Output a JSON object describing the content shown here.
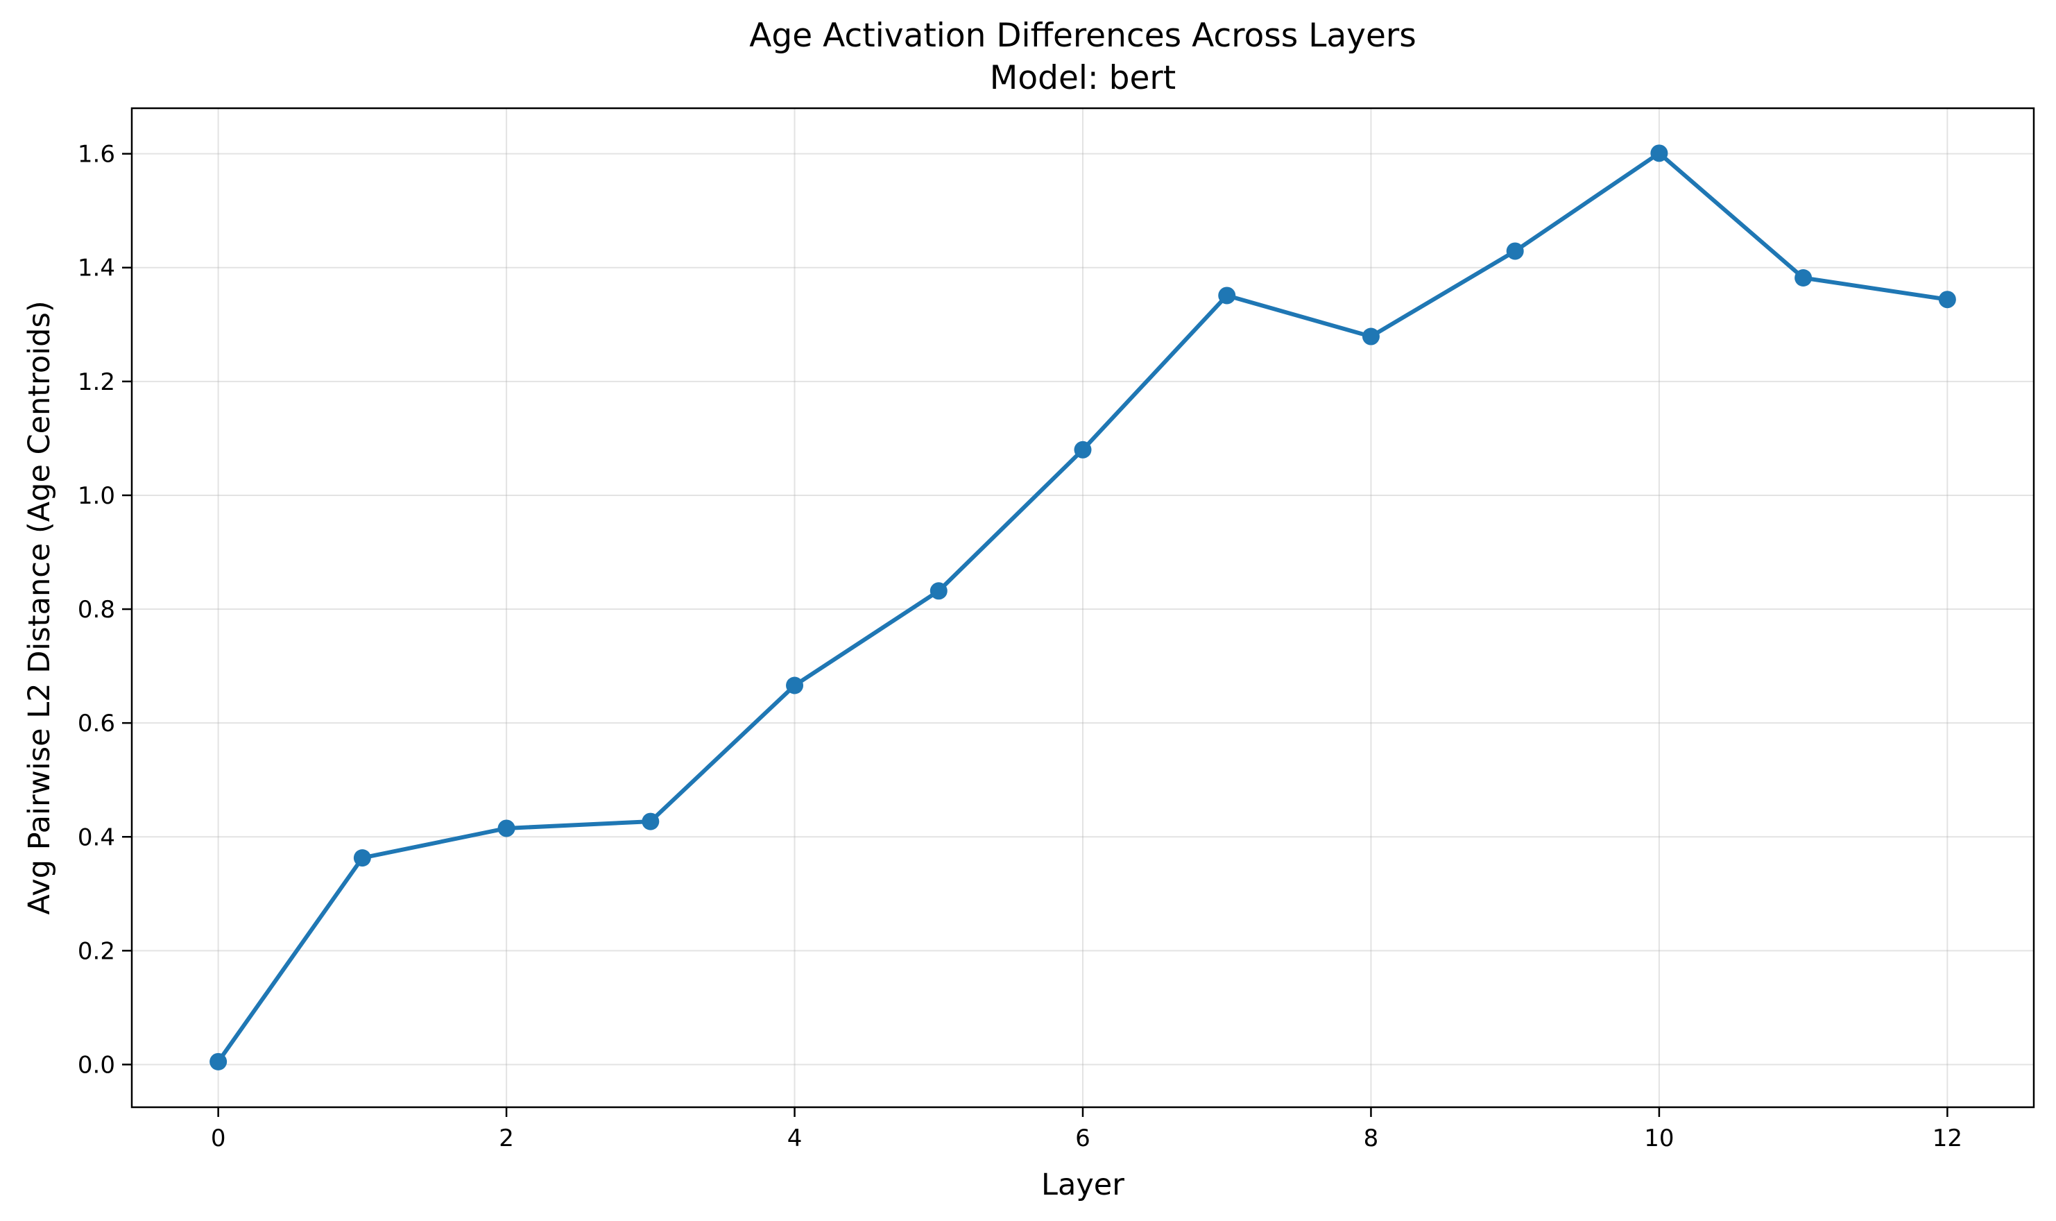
{
  "chart_data": {
    "type": "line",
    "title": "Age Activation Differences Across Layers",
    "subtitle": "Model: bert",
    "xlabel": "Layer",
    "ylabel": "Avg Pairwise L2 Distance (Age Centroids)",
    "xlim": [
      -0.6,
      12.6
    ],
    "ylim": [
      -0.075,
      1.68
    ],
    "xticks": [
      0,
      2,
      4,
      6,
      8,
      10,
      12
    ],
    "xtick_labels": [
      "0",
      "2",
      "4",
      "6",
      "8",
      "10",
      "12"
    ],
    "yticks": [
      0.0,
      0.2,
      0.4,
      0.6,
      0.8,
      1.0,
      1.2,
      1.4,
      1.6
    ],
    "ytick_labels": [
      "0.0",
      "0.2",
      "0.4",
      "0.6",
      "0.8",
      "1.0",
      "1.2",
      "1.4",
      "1.6"
    ],
    "grid": true,
    "series": [
      {
        "color": "#1f77b4",
        "marker": "circle",
        "x": [
          0,
          1,
          2,
          3,
          4,
          5,
          6,
          7,
          8,
          9,
          10,
          11,
          12
        ],
        "y": [
          0.005,
          0.363,
          0.415,
          0.427,
          0.666,
          0.832,
          1.08,
          1.351,
          1.279,
          1.429,
          1.601,
          1.382,
          1.344
        ]
      }
    ]
  }
}
